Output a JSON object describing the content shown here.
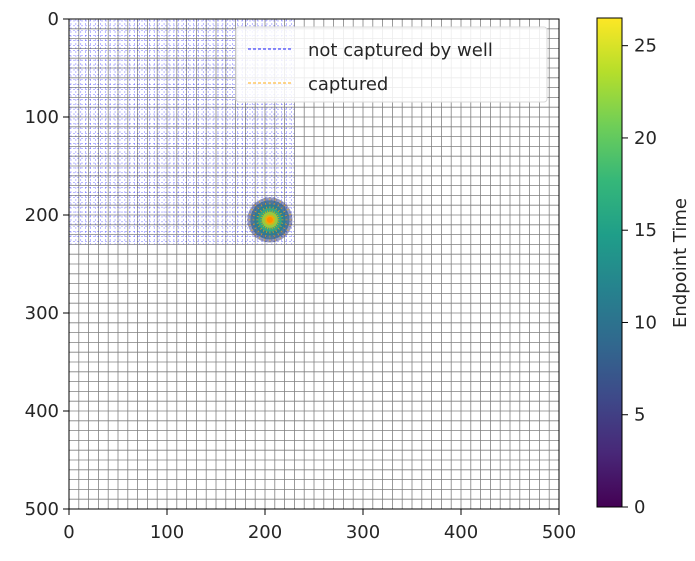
{
  "chart_data": {
    "type": "scatter",
    "title": "",
    "xlabel": "",
    "ylabel": "",
    "xlim": [
      0,
      500
    ],
    "ylim": [
      500,
      0
    ],
    "x_ticks": [
      0,
      100,
      200,
      300,
      400,
      500
    ],
    "y_ticks": [
      0,
      100,
      200,
      300,
      400,
      500
    ],
    "grid_spacing": 10,
    "grid_color": "#808080",
    "legend_position": "top-right",
    "series": [
      {
        "name": "not captured by well",
        "color": "#0000ff",
        "region_x": [
          0,
          230
        ],
        "region_y": [
          0,
          230
        ]
      },
      {
        "name": "captured",
        "color": "#ffa500",
        "center": [
          205,
          205
        ],
        "radius": 20
      }
    ],
    "colorbar": {
      "label": "Endpoint Time",
      "min": 0,
      "max": 26.5,
      "ticks": [
        0,
        5,
        10,
        15,
        20,
        25
      ],
      "colormap": "viridis",
      "colors": [
        "#440154",
        "#482878",
        "#3e4989",
        "#31688e",
        "#26828e",
        "#1f9e89",
        "#35b779",
        "#6ece58",
        "#b5de2b",
        "#fde725"
      ]
    }
  }
}
